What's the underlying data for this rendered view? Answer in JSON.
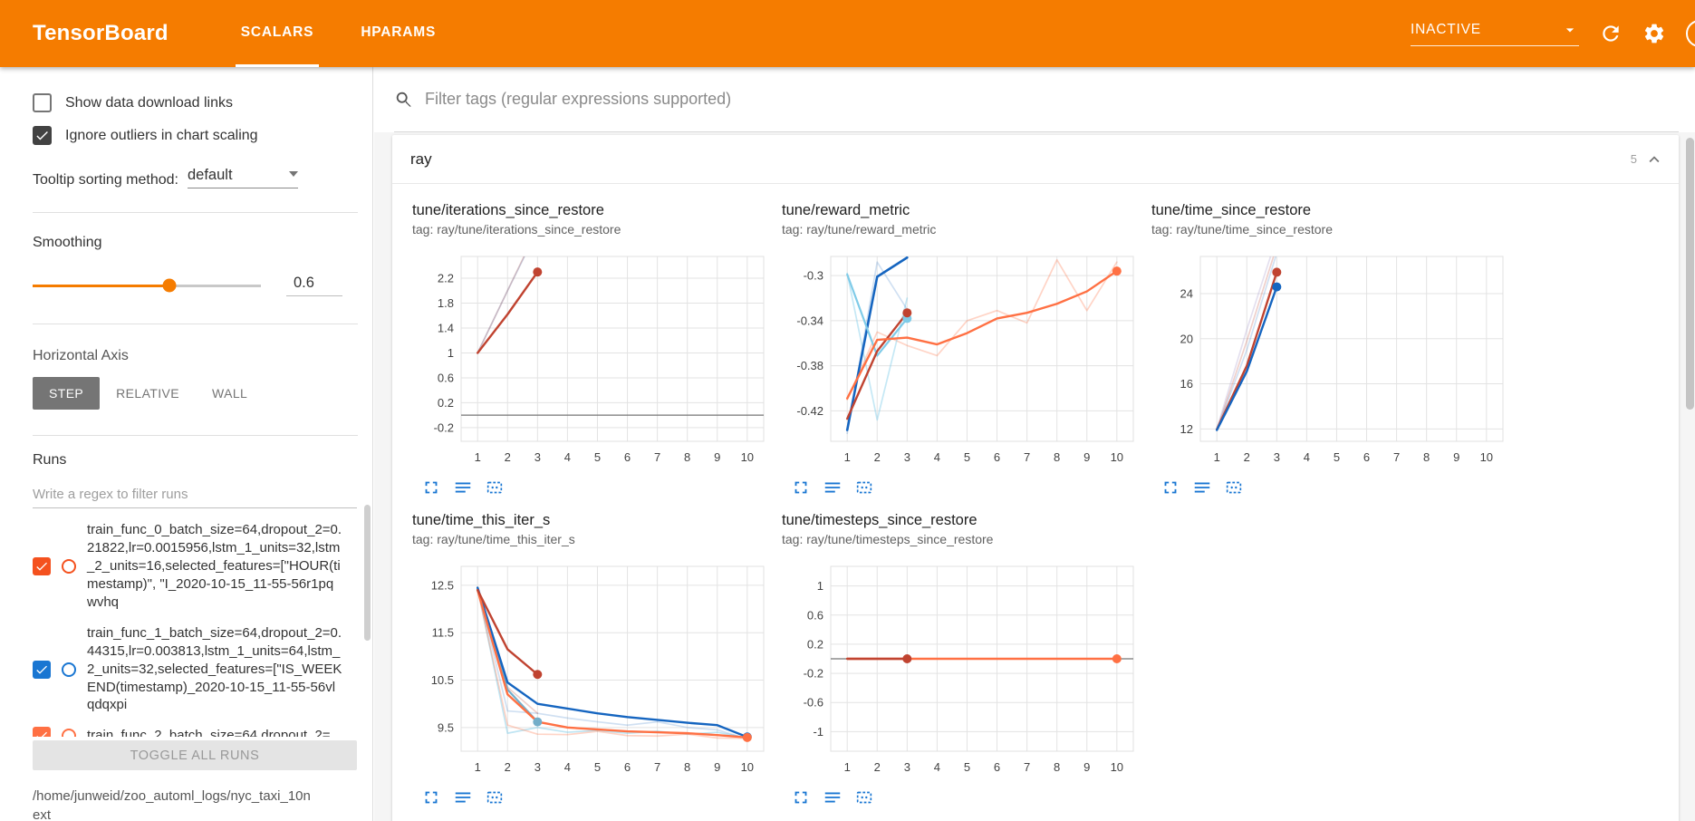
{
  "header": {
    "title": "TensorBoard",
    "tabs": [
      {
        "label": "SCALARS",
        "active": true
      },
      {
        "label": "HPARAMS",
        "active": false
      }
    ],
    "status_dropdown": "INACTIVE"
  },
  "sidebar": {
    "checkboxes": [
      {
        "label": "Show data download links",
        "checked": false
      },
      {
        "label": "Ignore outliers in chart scaling",
        "checked": true
      }
    ],
    "tooltip_sorting": {
      "label": "Tooltip sorting method:",
      "value": "default"
    },
    "smoothing": {
      "label": "Smoothing",
      "value": "0.6",
      "percent": 60
    },
    "horizontal_axis": {
      "label": "Horizontal Axis",
      "options": [
        "STEP",
        "RELATIVE",
        "WALL"
      ],
      "selected": "STEP"
    },
    "runs": {
      "label": "Runs",
      "filter_placeholder": "Write a regex to filter runs",
      "items": [
        {
          "label": "train_func_0_batch_size=64,dropout_2=0.21822,lr=0.0015956,lstm_1_units=32,lstm_2_units=16,selected_features=[\"HOUR(timestamp)\", \"I_2020-10-15_11-55-56r1pqwvhq",
          "checked": true,
          "color": "#f4511e"
        },
        {
          "label": "train_func_1_batch_size=64,dropout_2=0.44315,lr=0.003813,lstm_1_units=64,lstm_2_units=32,selected_features=[\"IS_WEEKEND(timestamp)_2020-10-15_11-55-56vlqdqxpi",
          "checked": true,
          "color": "#1976d2"
        },
        {
          "label": "train_func_2_batch_size=64,dropout_2=",
          "checked": true,
          "color": "#ff7043"
        }
      ],
      "toggle_all_label": "TOGGLE ALL RUNS"
    },
    "log_path": "/home/junweid/zoo_automl_logs/nyc_taxi_10next"
  },
  "main": {
    "filter_placeholder": "Filter tags (regular expressions supported)",
    "section": {
      "name": "ray",
      "count": "5"
    }
  },
  "colors": {
    "header_orange": "#f57c00",
    "chart_red": "#c04330",
    "chart_blue": "#1565c0",
    "chart_orange": "#ff7043",
    "chart_lightblue": "#7fcbe8",
    "icon_blue": "#1976d2"
  },
  "chart_data": [
    {
      "type": "line",
      "title": "tune/iterations_since_restore",
      "subtitle": "tag: ray/tune/iterations_since_restore",
      "xlim": [
        0.45,
        10.55
      ],
      "ylim": [
        -0.42,
        2.55
      ],
      "xticks": [
        1,
        2,
        3,
        4,
        5,
        6,
        7,
        8,
        9,
        10
      ],
      "yticks": [
        -0.2,
        0.2,
        0.6,
        1,
        1.4,
        1.8,
        2.2
      ],
      "series": [
        {
          "name": "train_func_0 raw",
          "color": "#c04330",
          "width": 1.7,
          "opacity": 0.28,
          "x": [
            1,
            2,
            3
          ],
          "y": [
            1,
            2,
            3
          ]
        },
        {
          "name": "train_func_1 raw",
          "color": "#1565c0",
          "width": 1.7,
          "opacity": 0.18,
          "x": [
            1,
            2,
            3
          ],
          "y": [
            1,
            2,
            2.97
          ]
        },
        {
          "name": "train_func_0 smoothed",
          "color": "#c04330",
          "width": 2.4,
          "opacity": 1,
          "x": [
            1,
            2,
            3
          ],
          "y": [
            1,
            1.62,
            2.3
          ],
          "end_dot": true
        }
      ]
    },
    {
      "type": "line",
      "title": "tune/reward_metric",
      "subtitle": "tag: ray/tune/reward_metric",
      "xlim": [
        0.45,
        10.55
      ],
      "ylim": [
        -0.447,
        -0.283
      ],
      "xticks": [
        1,
        2,
        3,
        4,
        5,
        6,
        7,
        8,
        9,
        10
      ],
      "yticks": [
        -0.42,
        -0.38,
        -0.34,
        -0.3
      ],
      "series": [
        {
          "name": "orange raw",
          "color": "#ff7043",
          "width": 1.7,
          "opacity": 0.3,
          "x": [
            1,
            2,
            3,
            4,
            5,
            6,
            7,
            8,
            9,
            10
          ],
          "y": [
            -0.41,
            -0.35,
            -0.362,
            -0.371,
            -0.34,
            -0.331,
            -0.342,
            -0.286,
            -0.331,
            -0.288
          ]
        },
        {
          "name": "lightblue raw",
          "color": "#7fcbe8",
          "width": 1.7,
          "opacity": 0.45,
          "x": [
            1,
            2,
            3
          ],
          "y": [
            -0.298,
            -0.428,
            -0.32
          ]
        },
        {
          "name": "blue raw",
          "color": "#1565c0",
          "width": 1.7,
          "opacity": 0.2,
          "x": [
            1,
            2,
            3
          ],
          "y": [
            -0.44,
            -0.288,
            -0.33
          ]
        },
        {
          "name": "blue smoothed",
          "color": "#1565c0",
          "width": 2.6,
          "opacity": 1,
          "x": [
            1,
            2,
            3
          ],
          "y": [
            -0.437,
            -0.301,
            -0.284
          ]
        },
        {
          "name": "lightblue smoothed",
          "color": "#7fcbe8",
          "width": 2.2,
          "opacity": 1,
          "x": [
            1,
            2,
            3
          ],
          "y": [
            -0.299,
            -0.371,
            -0.338
          ],
          "end_dot": true
        },
        {
          "name": "red smoothed",
          "color": "#c04330",
          "width": 2.4,
          "opacity": 1,
          "x": [
            1,
            2,
            3
          ],
          "y": [
            -0.427,
            -0.367,
            -0.333
          ],
          "end_dot": true
        },
        {
          "name": "orange smoothed",
          "color": "#ff7043",
          "width": 2.4,
          "opacity": 1,
          "x": [
            1,
            2,
            3,
            4,
            5,
            6,
            7,
            8,
            9,
            10
          ],
          "y": [
            -0.409,
            -0.357,
            -0.355,
            -0.361,
            -0.351,
            -0.338,
            -0.333,
            -0.325,
            -0.314,
            -0.296
          ],
          "end_dot": true
        }
      ]
    },
    {
      "type": "line",
      "title": "tune/time_since_restore",
      "subtitle": "tag: ray/tune/time_since_restore",
      "xlim": [
        0.45,
        10.55
      ],
      "ylim": [
        10.9,
        27.3
      ],
      "xticks": [
        1,
        2,
        3,
        4,
        5,
        6,
        7,
        8,
        9,
        10
      ],
      "yticks": [
        12,
        16,
        20,
        24
      ],
      "series": [
        {
          "name": "lavender raw",
          "color": "#b3a6d0",
          "width": 1.7,
          "opacity": 0.35,
          "x": [
            1,
            2,
            3
          ],
          "y": [
            12,
            20.8,
            29
          ]
        },
        {
          "name": "red raw",
          "color": "#c04330",
          "width": 1.7,
          "opacity": 0.25,
          "x": [
            1,
            2,
            3
          ],
          "y": [
            11.9,
            19.8,
            28.2
          ]
        },
        {
          "name": "blue raw",
          "color": "#1565c0",
          "width": 1.7,
          "opacity": 0.2,
          "x": [
            1,
            2,
            3
          ],
          "y": [
            11.9,
            19,
            27.6
          ]
        },
        {
          "name": "red smoothed",
          "color": "#c04330",
          "width": 2.4,
          "opacity": 1,
          "x": [
            1,
            2,
            3
          ],
          "y": [
            11.95,
            17.6,
            25.9
          ],
          "end_dot": true
        },
        {
          "name": "blue smoothed",
          "color": "#1565c0",
          "width": 2.4,
          "opacity": 1,
          "x": [
            1,
            2,
            3
          ],
          "y": [
            11.9,
            17.1,
            24.6
          ],
          "end_dot": true
        }
      ]
    },
    {
      "type": "line",
      "title": "tune/time_this_iter_s",
      "subtitle": "tag: ray/tune/time_this_iter_s",
      "xlim": [
        0.45,
        10.55
      ],
      "ylim": [
        9.0,
        12.9
      ],
      "xticks": [
        1,
        2,
        3,
        4,
        5,
        6,
        7,
        8,
        9,
        10
      ],
      "yticks": [
        9.5,
        10.5,
        11.5,
        12.5
      ],
      "series": [
        {
          "name": "lightblue raw",
          "color": "#7fcbe8",
          "width": 1.7,
          "opacity": 0.5,
          "x": [
            1,
            2,
            3,
            4,
            5,
            6,
            7,
            8,
            9,
            10
          ],
          "y": [
            12.45,
            9.38,
            9.5,
            9.4,
            9.44,
            9.38,
            9.42,
            9.36,
            9.4,
            9.28
          ]
        },
        {
          "name": "orange raw",
          "color": "#ff7043",
          "width": 1.7,
          "opacity": 0.3,
          "x": [
            1,
            2,
            3,
            4,
            5,
            6,
            7,
            8,
            9,
            10
          ],
          "y": [
            12.4,
            9.55,
            9.36,
            9.35,
            9.42,
            9.33,
            9.32,
            9.36,
            9.28,
            9.27
          ]
        },
        {
          "name": "blue raw",
          "color": "#1565c0",
          "width": 1.7,
          "opacity": 0.2,
          "x": [
            1,
            2,
            3,
            4,
            5,
            6,
            7,
            8,
            9,
            10
          ],
          "y": [
            12.45,
            9.85,
            9.8,
            9.7,
            9.62,
            9.55,
            9.62,
            9.5,
            9.45,
            9.26
          ]
        },
        {
          "name": "red raw",
          "color": "#c04330",
          "width": 1.7,
          "opacity": 0.25,
          "x": [
            1,
            2,
            3
          ],
          "y": [
            12.4,
            10.35,
            9.8
          ]
        },
        {
          "name": "slate smoothed",
          "color": "#74aec9",
          "width": 2.2,
          "opacity": 1,
          "x": [
            1,
            2,
            3
          ],
          "y": [
            12.42,
            10.3,
            9.62
          ],
          "end_dot": true
        },
        {
          "name": "blue smoothed",
          "color": "#1565c0",
          "width": 2.4,
          "opacity": 1,
          "x": [
            1,
            2,
            3,
            4,
            5,
            6,
            7,
            8,
            9,
            10
          ],
          "y": [
            12.45,
            10.45,
            10,
            9.9,
            9.8,
            9.72,
            9.66,
            9.6,
            9.55,
            9.3
          ],
          "end_dot": true
        },
        {
          "name": "orange smoothed",
          "color": "#ff7043",
          "width": 2.4,
          "opacity": 1,
          "x": [
            1,
            2,
            3,
            4,
            5,
            6,
            7,
            8,
            9,
            10
          ],
          "y": [
            12.4,
            10.2,
            9.62,
            9.5,
            9.46,
            9.42,
            9.4,
            9.38,
            9.34,
            9.29
          ],
          "end_dot": true
        },
        {
          "name": "red smoothed",
          "color": "#c04330",
          "width": 2.4,
          "opacity": 1,
          "x": [
            1,
            2,
            3
          ],
          "y": [
            12.4,
            11.15,
            10.62
          ],
          "end_dot": true
        }
      ]
    },
    {
      "type": "line",
      "title": "tune/timesteps_since_restore",
      "subtitle": "tag: ray/tune/timesteps_since_restore",
      "xlim": [
        0.45,
        10.55
      ],
      "ylim": [
        -1.27,
        1.27
      ],
      "xticks": [
        1,
        2,
        3,
        4,
        5,
        6,
        7,
        8,
        9,
        10
      ],
      "yticks": [
        -1,
        -0.6,
        -0.2,
        0.2,
        0.6,
        1
      ],
      "series": [
        {
          "name": "orange smoothed",
          "color": "#ff7043",
          "width": 2.4,
          "opacity": 1,
          "x": [
            1,
            2,
            3,
            4,
            5,
            6,
            7,
            8,
            9,
            10
          ],
          "y": [
            0,
            0,
            0,
            0,
            0,
            0,
            0,
            0,
            0,
            0
          ],
          "end_dot": true
        },
        {
          "name": "red smoothed",
          "color": "#c04330",
          "width": 2.4,
          "opacity": 1,
          "x": [
            1,
            2,
            3
          ],
          "y": [
            0,
            0,
            0
          ],
          "end_dot": true
        }
      ]
    }
  ]
}
